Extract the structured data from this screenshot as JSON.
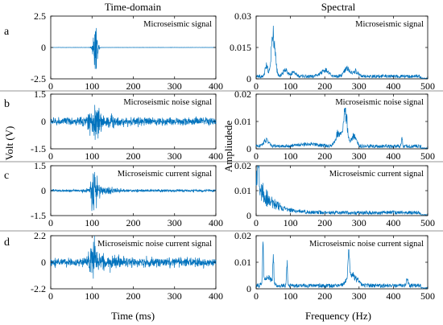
{
  "figure": {
    "left_title": "Time-domain",
    "right_title": "Spectral",
    "left_ylabel": "Volt (V)",
    "right_ylabel": "Ampliudede",
    "left_xlabel": "Time (ms)",
    "right_xlabel": "Frequency (Hz)",
    "line_color": "#0072bd"
  },
  "chart_data": [
    {
      "id": "a-time",
      "row": "a",
      "type": "line",
      "domain": "time",
      "annotation": "Microseismic signal",
      "xlim": [
        0,
        400
      ],
      "ylim": [
        -2.5,
        2.5
      ],
      "xticks": [
        0,
        100,
        200,
        300,
        400
      ],
      "xtick_labels": [
        "0",
        "100",
        "200",
        "300",
        "400"
      ],
      "yticks": [
        2.5,
        0,
        -2.5
      ],
      "ytick_labels": [
        "2.5",
        "0",
        "-2.5"
      ],
      "signal": {
        "kind": "burst",
        "center": 108,
        "width": 6,
        "amp": 2.3,
        "base": 0.01
      }
    },
    {
      "id": "a-spec",
      "row": "a",
      "type": "line",
      "domain": "frequency",
      "annotation": "Microseismic signal",
      "xlim": [
        0,
        500
      ],
      "ylim": [
        0,
        0.03
      ],
      "xticks": [
        0,
        100,
        200,
        300,
        400,
        500
      ],
      "xtick_labels": [
        "0",
        "100",
        "200",
        "300",
        "400",
        "500"
      ],
      "yticks": [
        0.03,
        0.015,
        0
      ],
      "ytick_labels": [
        "0.03",
        "0.015",
        "0"
      ],
      "peaks": [
        [
          50,
          0.025,
          8
        ],
        [
          30,
          0.006,
          6
        ],
        [
          85,
          0.004,
          10
        ],
        [
          110,
          0.003,
          8
        ],
        [
          200,
          0.004,
          15
        ],
        [
          265,
          0.005,
          12
        ],
        [
          290,
          0.003,
          10
        ]
      ],
      "noise": 0.0015
    },
    {
      "id": "b-time",
      "row": "b",
      "type": "line",
      "domain": "time",
      "annotation": "Microseismic noise signal",
      "xlim": [
        0,
        400
      ],
      "ylim": [
        -1.5,
        1.5
      ],
      "xticks": [
        0,
        100,
        200,
        300,
        400
      ],
      "xtick_labels": [
        "0",
        "100",
        "200",
        "300",
        "400"
      ],
      "yticks": [
        1.5,
        0,
        -1.5
      ],
      "ytick_labels": [
        "1.5",
        "0",
        "-1.5"
      ],
      "signal": {
        "kind": "noise",
        "center": 105,
        "width": 12,
        "amp": 1.3,
        "base": 0.35
      }
    },
    {
      "id": "b-spec",
      "row": "b",
      "type": "line",
      "domain": "frequency",
      "annotation": "Microseismic noise signal",
      "xlim": [
        0,
        500
      ],
      "ylim": [
        0,
        0.02
      ],
      "xticks": [
        0,
        100,
        200,
        300,
        400,
        500
      ],
      "xtick_labels": [
        "0",
        "100",
        "200",
        "300",
        "400",
        "500"
      ],
      "yticks": [
        0.02,
        0.01,
        0
      ],
      "ytick_labels": [
        "0.02",
        "0.01",
        "0"
      ],
      "peaks": [
        [
          260,
          0.016,
          8
        ],
        [
          240,
          0.006,
          12
        ],
        [
          285,
          0.005,
          10
        ],
        [
          30,
          0.003,
          10
        ],
        [
          425,
          0.004,
          2
        ],
        [
          150,
          0.001,
          40
        ]
      ],
      "noise": 0.0012
    },
    {
      "id": "c-time",
      "row": "c",
      "type": "line",
      "domain": "time",
      "annotation": "Microseismic current signal",
      "xlim": [
        0,
        400
      ],
      "ylim": [
        -1.5,
        1.5
      ],
      "xticks": [
        0,
        100,
        200,
        300,
        400
      ],
      "xtick_labels": [
        "0",
        "100",
        "200",
        "300",
        "400"
      ],
      "yticks": [
        1.5,
        0,
        -1.5
      ],
      "ytick_labels": [
        "1.5",
        "0",
        "-1.5"
      ],
      "signal": {
        "kind": "noise",
        "center": 105,
        "width": 10,
        "amp": 1.4,
        "base": 0.12
      }
    },
    {
      "id": "c-spec",
      "row": "c",
      "type": "line",
      "domain": "frequency",
      "annotation": "Microseismic current signal",
      "xlim": [
        0,
        500
      ],
      "ylim": [
        0,
        0.02
      ],
      "xticks": [
        0,
        100,
        200,
        300,
        400,
        500
      ],
      "xtick_labels": [
        "0",
        "100",
        "200",
        "300",
        "400",
        "500"
      ],
      "yticks": [
        0.02,
        0.01,
        0
      ],
      "ytick_labels": [
        "0.02",
        "0.01",
        "0"
      ],
      "decay": {
        "start": 0.014,
        "scale": 40
      },
      "peaks": [
        [
          5,
          0.018,
          3
        ]
      ],
      "noise": 0.0015
    },
    {
      "id": "d-time",
      "row": "d",
      "type": "line",
      "domain": "time",
      "annotation": "Microseismic noise current signal",
      "xlim": [
        0,
        400
      ],
      "ylim": [
        -2.2,
        2.2
      ],
      "xticks": [
        0,
        100,
        200,
        300,
        400
      ],
      "xtick_labels": [
        "0",
        "100",
        "200",
        "300",
        "400"
      ],
      "yticks": [
        2.2,
        0,
        -2.2
      ],
      "ytick_labels": [
        "2.2",
        "0",
        "-2.2"
      ],
      "signal": {
        "kind": "noise",
        "center": 105,
        "width": 10,
        "amp": 2.0,
        "base": 0.6
      }
    },
    {
      "id": "d-spec",
      "row": "d",
      "type": "line",
      "domain": "frequency",
      "annotation": "Microseismic noise current signal",
      "xlim": [
        0,
        500
      ],
      "ylim": [
        0,
        0.02
      ],
      "xticks": [
        0,
        100,
        200,
        300,
        400,
        500
      ],
      "xtick_labels": [
        "0",
        "100",
        "200",
        "300",
        "400",
        "500"
      ],
      "yticks": [
        0.02,
        0.01,
        0
      ],
      "ytick_labels": [
        "0.02",
        "0.01",
        "0"
      ],
      "peaks": [
        [
          20,
          0.018,
          2
        ],
        [
          50,
          0.013,
          2
        ],
        [
          90,
          0.011,
          2
        ],
        [
          35,
          0.004,
          15
        ],
        [
          270,
          0.013,
          3
        ],
        [
          280,
          0.005,
          20
        ],
        [
          440,
          0.003,
          4
        ]
      ],
      "noise": 0.0015
    }
  ]
}
